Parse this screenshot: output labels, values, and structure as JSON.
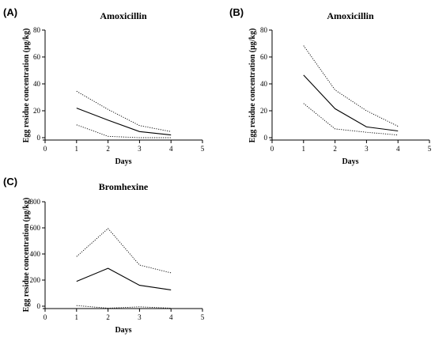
{
  "chart_data": [
    {
      "panel": "(A)",
      "type": "line",
      "title": "Amoxicillin",
      "xlabel": "Days",
      "ylabel": "Egg residue concentration (μg/kg)",
      "xlim": [
        0,
        5
      ],
      "ylim": [
        0,
        80
      ],
      "xticks": [
        0,
        1,
        2,
        3,
        4,
        5
      ],
      "yticks": [
        0,
        20,
        40,
        60,
        80
      ],
      "x": [
        1,
        2,
        3,
        4
      ],
      "series": [
        {
          "values": [
            34.5,
            21,
            9,
            4.5
          ],
          "style": "dotted"
        },
        {
          "values": [
            22,
            13,
            4.5,
            2
          ],
          "style": "solid"
        },
        {
          "values": [
            9.5,
            1,
            0,
            0
          ],
          "style": "dotted"
        }
      ]
    },
    {
      "panel": "(B)",
      "type": "line",
      "title": "Amoxicillin",
      "xlabel": "Days",
      "ylabel": "Egg residue concentration (μg/kg)",
      "xlim": [
        0,
        5
      ],
      "ylim": [
        0,
        80
      ],
      "xticks": [
        0,
        1,
        2,
        3,
        4,
        5
      ],
      "yticks": [
        0,
        20,
        40,
        60,
        80
      ],
      "x": [
        1,
        2,
        3,
        4
      ],
      "series": [
        {
          "values": [
            68.5,
            35.5,
            20,
            8.5
          ],
          "style": "dotted"
        },
        {
          "values": [
            46.5,
            21.5,
            8,
            5
          ],
          "style": "solid"
        },
        {
          "values": [
            25.5,
            6.5,
            4,
            2
          ],
          "style": "dotted"
        }
      ]
    },
    {
      "panel": "(C)",
      "type": "line",
      "title": "Bromhexine",
      "xlabel": "Days",
      "ylabel": "Egg residue concentration (μg/kg)",
      "xlim": [
        0,
        5
      ],
      "ylim": [
        0,
        800
      ],
      "xticks": [
        0,
        1,
        2,
        3,
        4,
        5
      ],
      "yticks": [
        0,
        200,
        400,
        600,
        800
      ],
      "x": [
        1,
        2,
        3,
        4
      ],
      "series": [
        {
          "values": [
            380,
            595,
            315,
            255
          ],
          "style": "dotted"
        },
        {
          "values": [
            190,
            290,
            160,
            125
          ],
          "style": "solid"
        },
        {
          "values": [
            5,
            -15,
            -5,
            -15
          ],
          "style": "dotted"
        }
      ]
    }
  ]
}
